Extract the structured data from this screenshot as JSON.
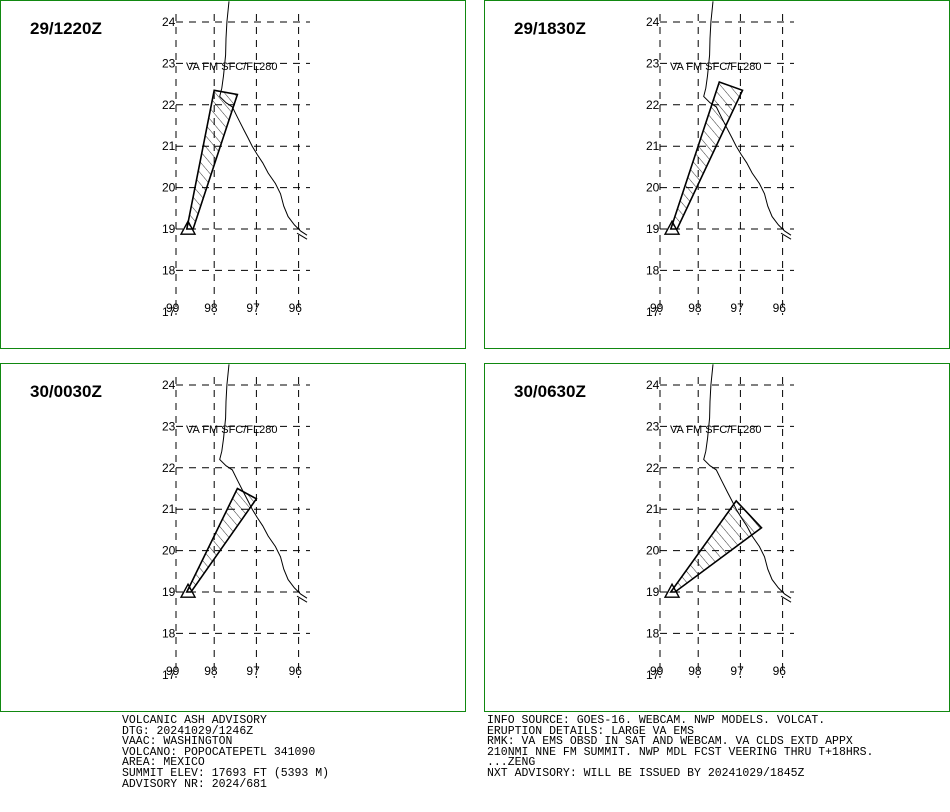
{
  "map": {
    "lon_ticks": [
      -99,
      -98,
      -97,
      -96
    ],
    "lat_ticks": [
      24,
      23,
      22,
      21,
      20,
      19,
      18,
      17
    ],
    "lon_labels": [
      "99",
      "98",
      "97",
      "96"
    ],
    "lat_labels": [
      "24",
      "23",
      "22",
      "21",
      "20",
      "19",
      "18",
      "17"
    ],
    "va_label": "VA FM SFC/FL280",
    "volcano": {
      "lat": 19.02,
      "lon": -98.62
    },
    "coastline": [
      [
        24.5,
        -97.65
      ],
      [
        24.0,
        -97.7
      ],
      [
        23.6,
        -97.72
      ],
      [
        23.2,
        -97.73
      ],
      [
        22.7,
        -97.78
      ],
      [
        22.4,
        -97.82
      ],
      [
        22.2,
        -97.87
      ],
      [
        22.05,
        -97.72
      ],
      [
        21.95,
        -97.57
      ],
      [
        21.7,
        -97.45
      ],
      [
        21.4,
        -97.3
      ],
      [
        21.2,
        -97.2
      ],
      [
        21.0,
        -97.1
      ],
      [
        20.8,
        -96.98
      ],
      [
        20.6,
        -96.85
      ],
      [
        20.35,
        -96.72
      ],
      [
        20.1,
        -96.55
      ],
      [
        19.85,
        -96.43
      ],
      [
        19.55,
        -96.35
      ],
      [
        19.3,
        -96.25
      ],
      [
        19.1,
        -96.1
      ],
      [
        18.95,
        -95.95
      ],
      [
        18.85,
        -95.8
      ]
    ]
  },
  "panels": [
    {
      "dtg": "29/1220Z",
      "cloud": [
        [
          19.0,
          -98.65
        ],
        [
          22.35,
          -98.0
        ],
        [
          22.25,
          -97.45
        ],
        [
          19.0,
          -98.5
        ]
      ]
    },
    {
      "dtg": "29/1830Z",
      "cloud": [
        [
          19.0,
          -98.65
        ],
        [
          22.55,
          -97.5
        ],
        [
          22.35,
          -96.95
        ],
        [
          19.0,
          -98.5
        ]
      ]
    },
    {
      "dtg": "30/0030Z",
      "cloud": [
        [
          19.0,
          -98.65
        ],
        [
          21.5,
          -97.45
        ],
        [
          21.25,
          -97.0
        ],
        [
          19.0,
          -98.55
        ]
      ]
    },
    {
      "dtg": "30/0630Z",
      "cloud": [
        [
          19.0,
          -98.65
        ],
        [
          21.2,
          -97.1
        ],
        [
          20.55,
          -96.5
        ],
        [
          19.0,
          -98.55
        ]
      ]
    }
  ],
  "advisory": {
    "left": [
      "VOLCANIC ASH ADVISORY",
      "DTG: 20241029/1246Z",
      "VAAC: WASHINGTON",
      "VOLCANO: POPOCATEPETL 341090",
      "AREA: MEXICO",
      "SUMMIT ELEV: 17693 FT (5393 M)",
      "ADVISORY NR: 2024/681"
    ],
    "right": [
      "INFO SOURCE: GOES-16. WEBCAM. NWP MODELS. VOLCAT.",
      "ERUPTION DETAILS: LARGE VA EMS",
      "RMK: VA EMS OBSD IN SAT AND WEBCAM. VA CLDS EXTD APPX",
      "210NMI NNE FM SUMMIT. NWP MDL FCST VEERING THRU T+18HRS.",
      "...ZENG",
      "NXT ADVISORY: WILL BE ISSUED BY 20241029/1845Z"
    ]
  },
  "colors": {
    "frame": "#118811",
    "ink": "#000000",
    "background": "#ffffff"
  }
}
